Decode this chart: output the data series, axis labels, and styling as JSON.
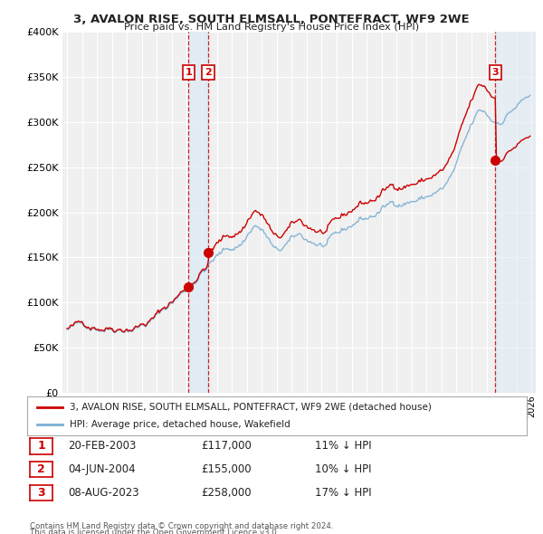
{
  "title": "3, AVALON RISE, SOUTH ELMSALL, PONTEFRACT, WF9 2WE",
  "subtitle": "Price paid vs. HM Land Registry's House Price Index (HPI)",
  "legend_line1": "3, AVALON RISE, SOUTH ELMSALL, PONTEFRACT, WF9 2WE (detached house)",
  "legend_line2": "HPI: Average price, detached house, Wakefield",
  "footer1": "Contains HM Land Registry data © Crown copyright and database right 2024.",
  "footer2": "This data is licensed under the Open Government Licence v3.0.",
  "transactions": [
    {
      "num": 1,
      "date": "20-FEB-2003",
      "price": "£117,000",
      "hpi": "11% ↓ HPI",
      "year": 2003.12
    },
    {
      "num": 2,
      "date": "04-JUN-2004",
      "price": "£155,000",
      "hpi": "10% ↓ HPI",
      "year": 2004.42
    },
    {
      "num": 3,
      "date": "08-AUG-2023",
      "price": "£258,000",
      "hpi": "17% ↓ HPI",
      "year": 2023.6
    }
  ],
  "sale_prices": [
    117000,
    155000,
    258000
  ],
  "ylim": [
    0,
    400000
  ],
  "yticks": [
    0,
    50000,
    100000,
    150000,
    200000,
    250000,
    300000,
    350000,
    400000
  ],
  "hpi_color": "#7bafd4",
  "sale_line_color": "#cc0000",
  "marker_color": "#cc0000",
  "vline_color": "#cc0000",
  "shade_color": "#dce9f5",
  "background_color": "#ffffff",
  "plot_bg_color": "#f0f0f0",
  "grid_color": "#ffffff",
  "hatch_color": "#cccccc",
  "xlim_left": 1994.7,
  "xlim_right": 2026.3
}
